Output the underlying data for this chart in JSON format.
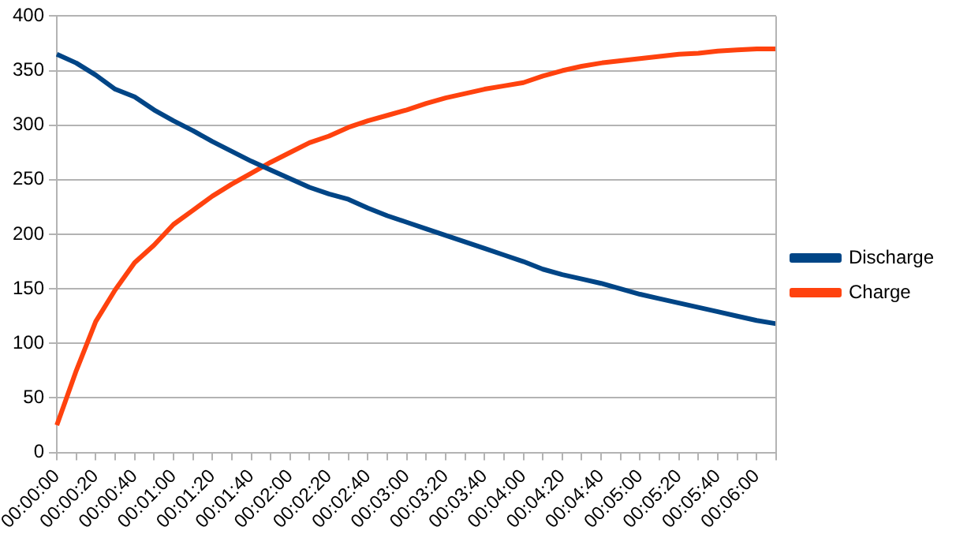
{
  "chart_data": {
    "type": "line",
    "categories": [
      "00:00:00",
      null,
      "00:00:20",
      null,
      "00:00:40",
      null,
      "00:01:00",
      null,
      "00:01:20",
      null,
      "00:01:40",
      null,
      "00:02:00",
      null,
      "00:02:20",
      null,
      "00:02:40",
      null,
      "00:03:00",
      null,
      "00:03:20",
      null,
      "00:03:40",
      null,
      "00:04:00",
      null,
      "00:04:20",
      null,
      "00:04:40",
      null,
      "00:05:00",
      null,
      "00:05:20",
      null,
      "00:05:40",
      null,
      "00:06:00",
      null
    ],
    "series": [
      {
        "name": "Discharge",
        "color": "#004586",
        "values": [
          365,
          357,
          346,
          333,
          326,
          314,
          304,
          295,
          285,
          276,
          267,
          259,
          251,
          243,
          237,
          232,
          224,
          217,
          211,
          205,
          199,
          193,
          187,
          181,
          175,
          168,
          163,
          159,
          155,
          150,
          145,
          141,
          137,
          133,
          129,
          125,
          121,
          118
        ]
      },
      {
        "name": "Charge",
        "color": "#ff420e",
        "values": [
          25,
          75,
          120,
          149,
          174,
          190,
          209,
          222,
          235,
          246,
          256,
          266,
          275,
          284,
          290,
          298,
          304,
          309,
          314,
          320,
          325,
          329,
          333,
          336,
          339,
          345,
          350,
          354,
          357,
          359,
          361,
          363,
          365,
          366,
          368,
          369,
          370,
          370
        ]
      }
    ],
    "ylim": [
      0,
      400
    ],
    "yticks": [
      0,
      50,
      100,
      150,
      200,
      250,
      300,
      350,
      400
    ],
    "grid": "y",
    "legend": "right",
    "marker": "none",
    "line_style": "solid"
  }
}
